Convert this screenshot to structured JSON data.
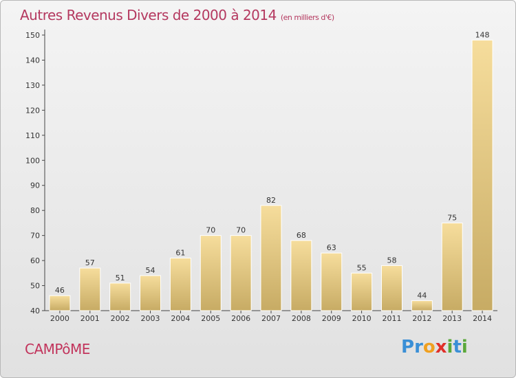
{
  "header": {
    "title": "Autres Revenus Divers de 2000 à 2014",
    "subtitle": "(en milliers d'€)"
  },
  "footer": {
    "commune": "CAMPôME",
    "logo_letters": [
      {
        "ch": "P",
        "color": "#3a8fd6"
      },
      {
        "ch": "r",
        "color": "#3a8fd6"
      },
      {
        "ch": "o",
        "color": "#f0a020"
      },
      {
        "ch": "x",
        "color": "#e0302a"
      },
      {
        "ch": "i",
        "color": "#5aa83a"
      },
      {
        "ch": "t",
        "color": "#3a8fd6"
      },
      {
        "ch": "i",
        "color": "#5aa83a"
      }
    ]
  },
  "colors": {
    "bar_top": "#f6dd9c",
    "bar_bottom": "#c7ab64",
    "title": "#b4385f"
  },
  "chart_data": {
    "type": "bar",
    "title": "Autres Revenus Divers de 2000 à 2014",
    "subtitle": "(en milliers d'€)",
    "categories": [
      "2000",
      "2001",
      "2002",
      "2003",
      "2004",
      "2005",
      "2006",
      "2007",
      "2008",
      "2009",
      "2010",
      "2011",
      "2012",
      "2013",
      "2014"
    ],
    "values": [
      46,
      57,
      51,
      54,
      61,
      70,
      70,
      82,
      68,
      63,
      55,
      58,
      44,
      75,
      148
    ],
    "xlabel": "",
    "ylabel": "",
    "ylim": [
      40,
      150
    ],
    "yticks": [
      40,
      50,
      60,
      70,
      80,
      90,
      100,
      110,
      120,
      130,
      140,
      150
    ],
    "grid": false,
    "legend": "none"
  }
}
